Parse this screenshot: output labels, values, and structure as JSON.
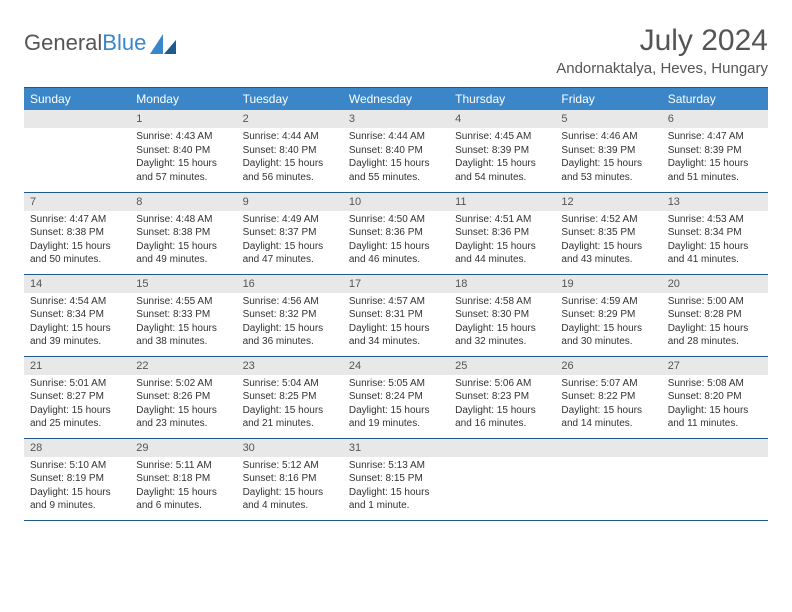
{
  "logo": {
    "text_general": "General",
    "text_blue": "Blue"
  },
  "header": {
    "month_title": "July 2024",
    "location": "Andornaktalya, Heves, Hungary"
  },
  "colors": {
    "header_bg": "#3a86c8",
    "header_text": "#ffffff",
    "border": "#1e5a8e",
    "daynum_bg": "#e8e8e8",
    "body_text": "#333333",
    "title_text": "#555555"
  },
  "typography": {
    "month_title_fontsize": 30,
    "location_fontsize": 15,
    "dayheader_fontsize": 12,
    "daynum_fontsize": 11,
    "content_fontsize": 10
  },
  "weekdays": [
    "Sunday",
    "Monday",
    "Tuesday",
    "Wednesday",
    "Thursday",
    "Friday",
    "Saturday"
  ],
  "weeks": [
    [
      {
        "day": "",
        "sunrise": "",
        "sunset": "",
        "daylight": ""
      },
      {
        "day": "1",
        "sunrise": "Sunrise: 4:43 AM",
        "sunset": "Sunset: 8:40 PM",
        "daylight": "Daylight: 15 hours and 57 minutes."
      },
      {
        "day": "2",
        "sunrise": "Sunrise: 4:44 AM",
        "sunset": "Sunset: 8:40 PM",
        "daylight": "Daylight: 15 hours and 56 minutes."
      },
      {
        "day": "3",
        "sunrise": "Sunrise: 4:44 AM",
        "sunset": "Sunset: 8:40 PM",
        "daylight": "Daylight: 15 hours and 55 minutes."
      },
      {
        "day": "4",
        "sunrise": "Sunrise: 4:45 AM",
        "sunset": "Sunset: 8:39 PM",
        "daylight": "Daylight: 15 hours and 54 minutes."
      },
      {
        "day": "5",
        "sunrise": "Sunrise: 4:46 AM",
        "sunset": "Sunset: 8:39 PM",
        "daylight": "Daylight: 15 hours and 53 minutes."
      },
      {
        "day": "6",
        "sunrise": "Sunrise: 4:47 AM",
        "sunset": "Sunset: 8:39 PM",
        "daylight": "Daylight: 15 hours and 51 minutes."
      }
    ],
    [
      {
        "day": "7",
        "sunrise": "Sunrise: 4:47 AM",
        "sunset": "Sunset: 8:38 PM",
        "daylight": "Daylight: 15 hours and 50 minutes."
      },
      {
        "day": "8",
        "sunrise": "Sunrise: 4:48 AM",
        "sunset": "Sunset: 8:38 PM",
        "daylight": "Daylight: 15 hours and 49 minutes."
      },
      {
        "day": "9",
        "sunrise": "Sunrise: 4:49 AM",
        "sunset": "Sunset: 8:37 PM",
        "daylight": "Daylight: 15 hours and 47 minutes."
      },
      {
        "day": "10",
        "sunrise": "Sunrise: 4:50 AM",
        "sunset": "Sunset: 8:36 PM",
        "daylight": "Daylight: 15 hours and 46 minutes."
      },
      {
        "day": "11",
        "sunrise": "Sunrise: 4:51 AM",
        "sunset": "Sunset: 8:36 PM",
        "daylight": "Daylight: 15 hours and 44 minutes."
      },
      {
        "day": "12",
        "sunrise": "Sunrise: 4:52 AM",
        "sunset": "Sunset: 8:35 PM",
        "daylight": "Daylight: 15 hours and 43 minutes."
      },
      {
        "day": "13",
        "sunrise": "Sunrise: 4:53 AM",
        "sunset": "Sunset: 8:34 PM",
        "daylight": "Daylight: 15 hours and 41 minutes."
      }
    ],
    [
      {
        "day": "14",
        "sunrise": "Sunrise: 4:54 AM",
        "sunset": "Sunset: 8:34 PM",
        "daylight": "Daylight: 15 hours and 39 minutes."
      },
      {
        "day": "15",
        "sunrise": "Sunrise: 4:55 AM",
        "sunset": "Sunset: 8:33 PM",
        "daylight": "Daylight: 15 hours and 38 minutes."
      },
      {
        "day": "16",
        "sunrise": "Sunrise: 4:56 AM",
        "sunset": "Sunset: 8:32 PM",
        "daylight": "Daylight: 15 hours and 36 minutes."
      },
      {
        "day": "17",
        "sunrise": "Sunrise: 4:57 AM",
        "sunset": "Sunset: 8:31 PM",
        "daylight": "Daylight: 15 hours and 34 minutes."
      },
      {
        "day": "18",
        "sunrise": "Sunrise: 4:58 AM",
        "sunset": "Sunset: 8:30 PM",
        "daylight": "Daylight: 15 hours and 32 minutes."
      },
      {
        "day": "19",
        "sunrise": "Sunrise: 4:59 AM",
        "sunset": "Sunset: 8:29 PM",
        "daylight": "Daylight: 15 hours and 30 minutes."
      },
      {
        "day": "20",
        "sunrise": "Sunrise: 5:00 AM",
        "sunset": "Sunset: 8:28 PM",
        "daylight": "Daylight: 15 hours and 28 minutes."
      }
    ],
    [
      {
        "day": "21",
        "sunrise": "Sunrise: 5:01 AM",
        "sunset": "Sunset: 8:27 PM",
        "daylight": "Daylight: 15 hours and 25 minutes."
      },
      {
        "day": "22",
        "sunrise": "Sunrise: 5:02 AM",
        "sunset": "Sunset: 8:26 PM",
        "daylight": "Daylight: 15 hours and 23 minutes."
      },
      {
        "day": "23",
        "sunrise": "Sunrise: 5:04 AM",
        "sunset": "Sunset: 8:25 PM",
        "daylight": "Daylight: 15 hours and 21 minutes."
      },
      {
        "day": "24",
        "sunrise": "Sunrise: 5:05 AM",
        "sunset": "Sunset: 8:24 PM",
        "daylight": "Daylight: 15 hours and 19 minutes."
      },
      {
        "day": "25",
        "sunrise": "Sunrise: 5:06 AM",
        "sunset": "Sunset: 8:23 PM",
        "daylight": "Daylight: 15 hours and 16 minutes."
      },
      {
        "day": "26",
        "sunrise": "Sunrise: 5:07 AM",
        "sunset": "Sunset: 8:22 PM",
        "daylight": "Daylight: 15 hours and 14 minutes."
      },
      {
        "day": "27",
        "sunrise": "Sunrise: 5:08 AM",
        "sunset": "Sunset: 8:20 PM",
        "daylight": "Daylight: 15 hours and 11 minutes."
      }
    ],
    [
      {
        "day": "28",
        "sunrise": "Sunrise: 5:10 AM",
        "sunset": "Sunset: 8:19 PM",
        "daylight": "Daylight: 15 hours and 9 minutes."
      },
      {
        "day": "29",
        "sunrise": "Sunrise: 5:11 AM",
        "sunset": "Sunset: 8:18 PM",
        "daylight": "Daylight: 15 hours and 6 minutes."
      },
      {
        "day": "30",
        "sunrise": "Sunrise: 5:12 AM",
        "sunset": "Sunset: 8:16 PM",
        "daylight": "Daylight: 15 hours and 4 minutes."
      },
      {
        "day": "31",
        "sunrise": "Sunrise: 5:13 AM",
        "sunset": "Sunset: 8:15 PM",
        "daylight": "Daylight: 15 hours and 1 minute."
      },
      {
        "day": "",
        "sunrise": "",
        "sunset": "",
        "daylight": ""
      },
      {
        "day": "",
        "sunrise": "",
        "sunset": "",
        "daylight": ""
      },
      {
        "day": "",
        "sunrise": "",
        "sunset": "",
        "daylight": ""
      }
    ]
  ]
}
